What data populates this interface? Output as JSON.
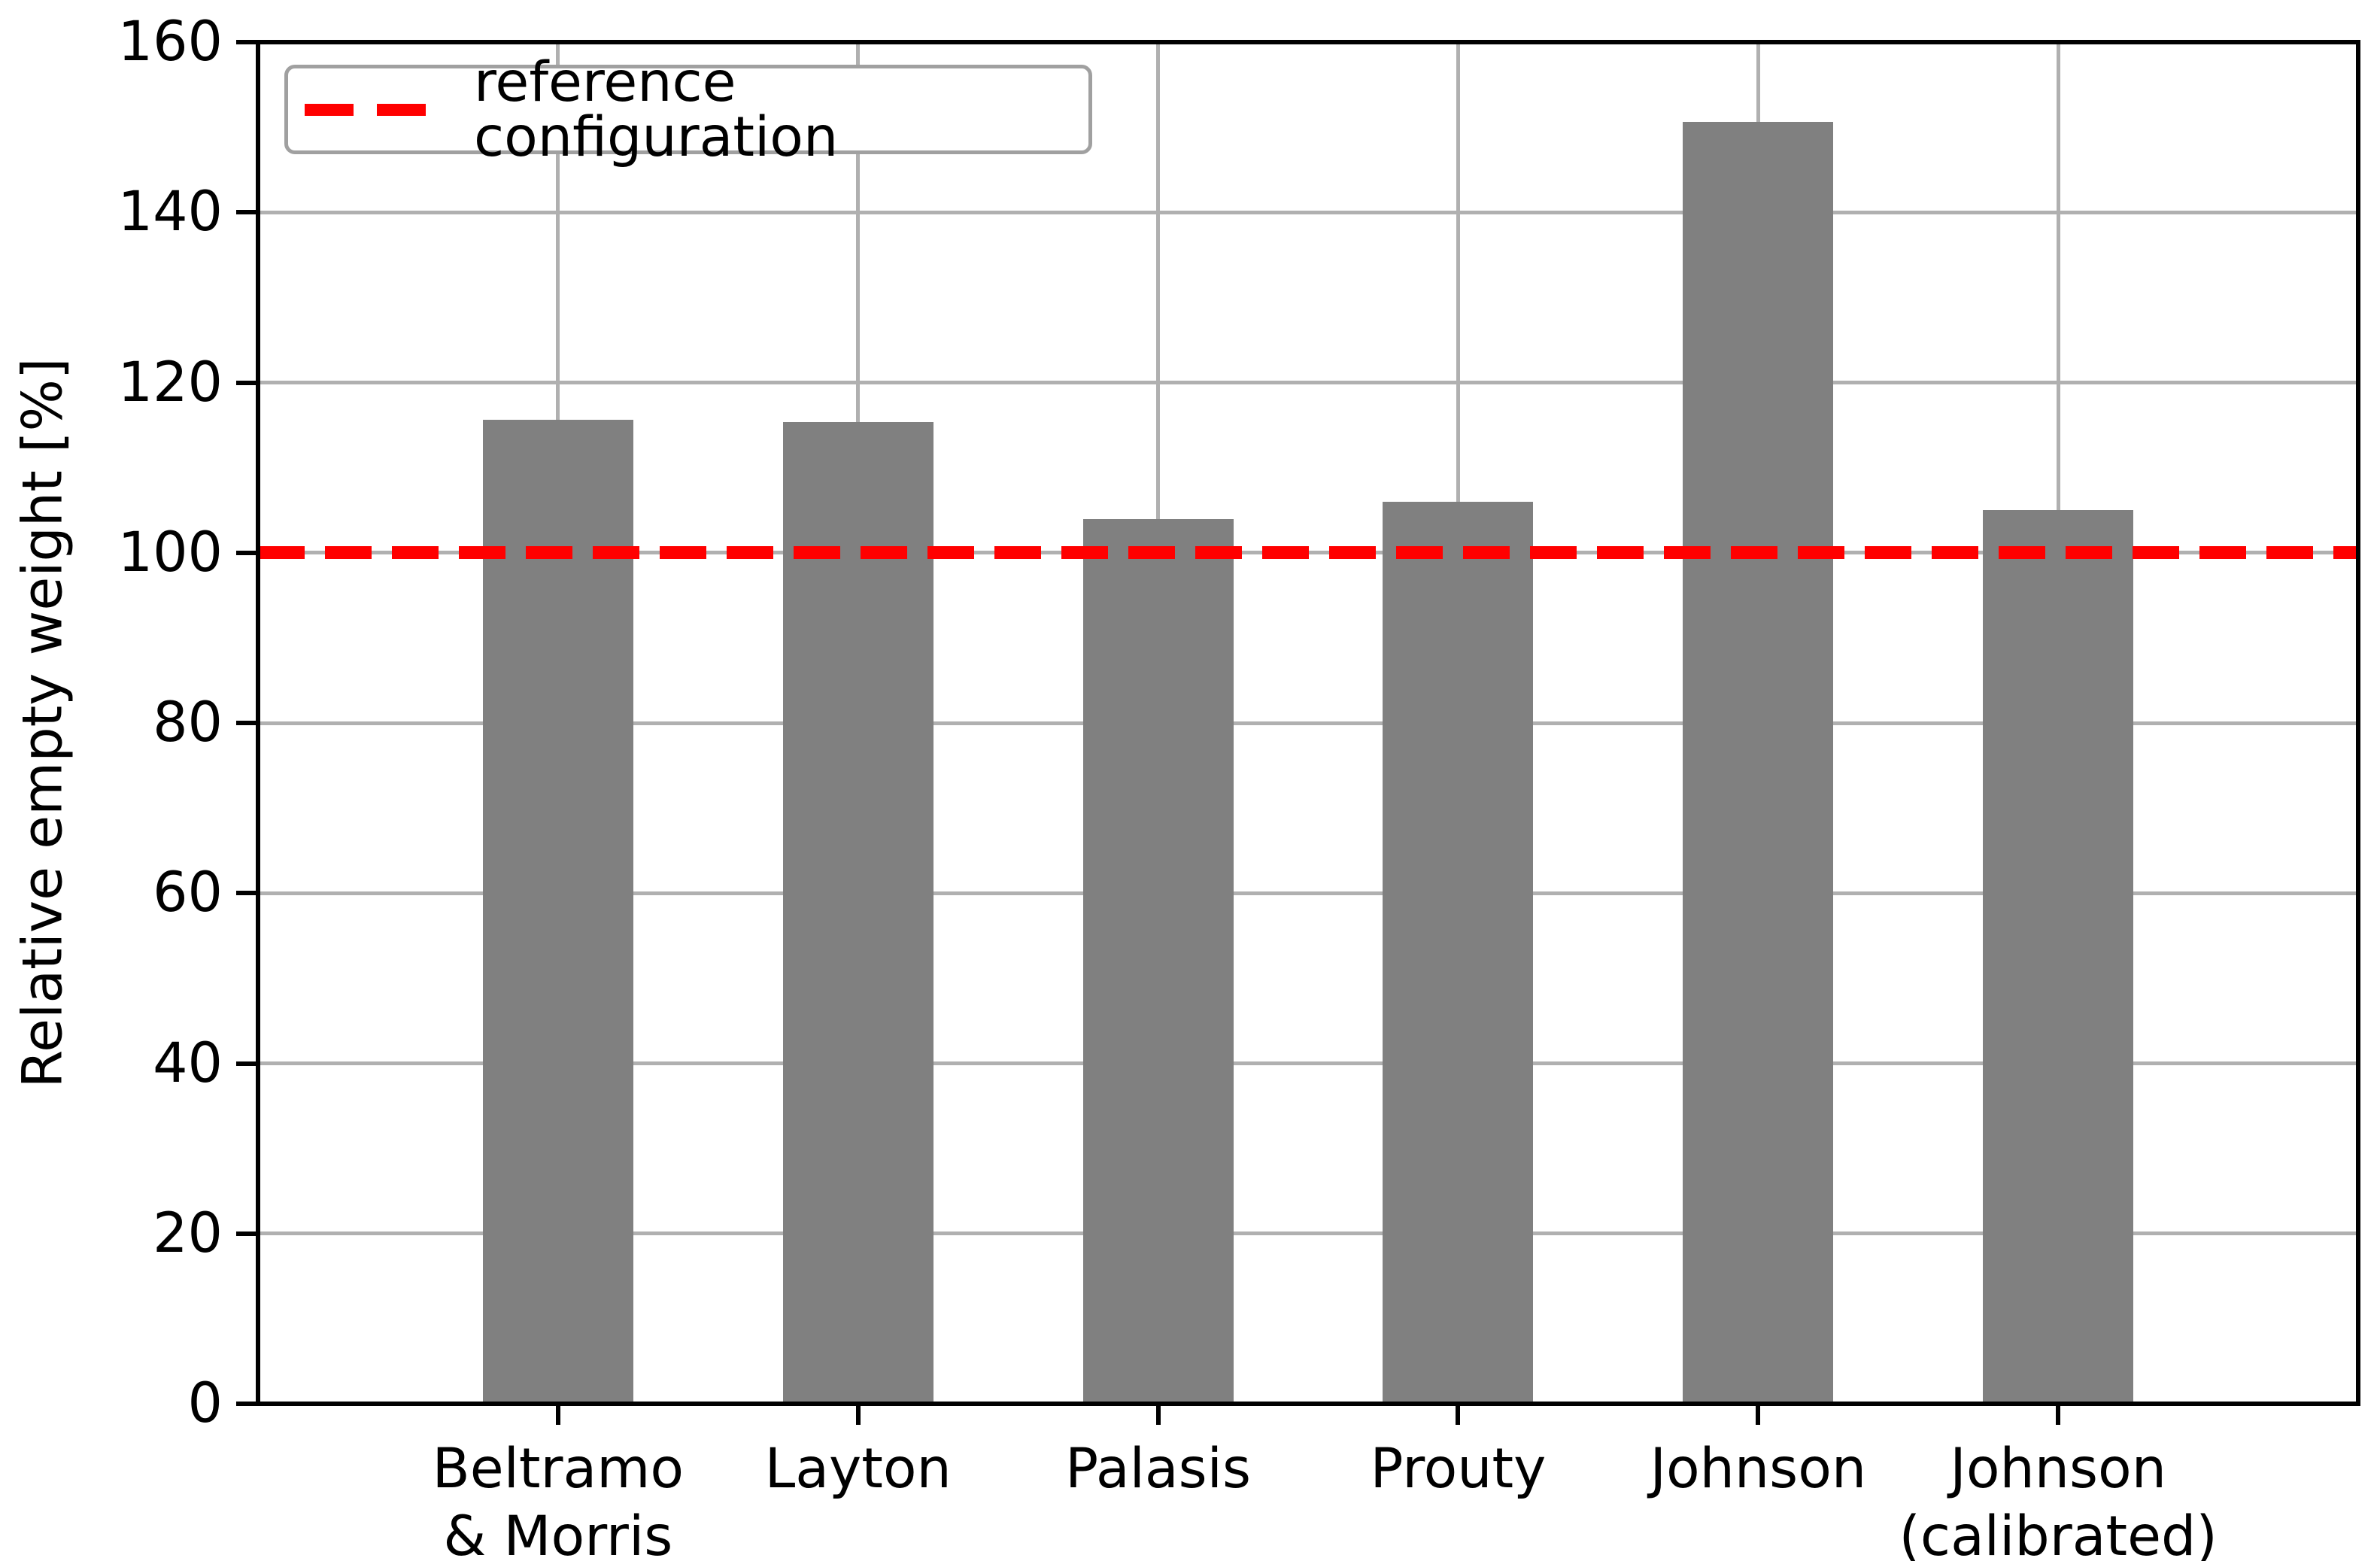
{
  "chart_data": {
    "type": "bar",
    "title": "",
    "categories": [
      "Beltramo\n& Morris",
      "Layton",
      "Palasis",
      "Prouty",
      "Johnson",
      "Johnson\n(calibrated)"
    ],
    "values": [
      115.6,
      115.4,
      104.0,
      106.0,
      150.6,
      105.0
    ],
    "xlabel": "",
    "ylabel": "Relative empty weight [%]",
    "ylim": [
      0,
      160
    ],
    "yticks": [
      0,
      20,
      40,
      60,
      80,
      100,
      120,
      140,
      160
    ],
    "grid": true,
    "bar_color": "#808080",
    "grid_color": "#b0b0b0",
    "spine_color": "#000000",
    "reference_line": {
      "value": 100,
      "label": "reference configuration",
      "color": "#ff0000",
      "style": "dashed"
    },
    "legend_position": "upper left"
  }
}
